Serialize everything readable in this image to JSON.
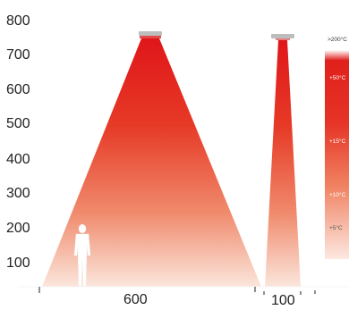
{
  "vertical_axis": {
    "ticks": [
      "800",
      "700",
      "600",
      "500",
      "400",
      "300",
      "200",
      "100"
    ]
  },
  "horizontal_axis": {
    "labels": [
      "600",
      "100"
    ]
  },
  "temperature_scale": {
    "labels": [
      ">200°C",
      "+50°C",
      "+15°C",
      "+10°C",
      "+5°C"
    ]
  },
  "colors": {
    "cone_top": "#e01a1a",
    "cone_bottom": "#fbe4db",
    "heater_body": "#b9b9b9",
    "heater_glow": "#e24a4a",
    "person": "#ffffff",
    "axis": "#222222"
  },
  "icons": {
    "heater_large": "ceiling-heater-icon",
    "heater_small": "ceiling-heater-icon",
    "person": "standing-person-icon"
  }
}
